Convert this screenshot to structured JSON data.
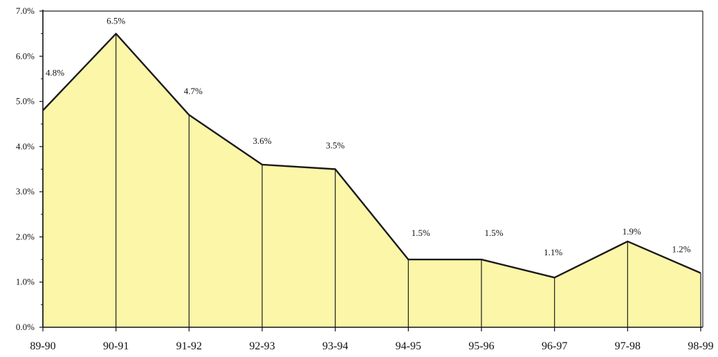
{
  "chart_data": {
    "type": "area",
    "categories": [
      "89-90",
      "90-91",
      "91-92",
      "92-93",
      "93-94",
      "94-95",
      "95-96",
      "96-97",
      "97-98",
      "98-99"
    ],
    "values": [
      4.8,
      6.5,
      4.7,
      3.6,
      3.5,
      1.5,
      1.5,
      1.1,
      1.9,
      1.2
    ],
    "data_labels": [
      "4.8%",
      "6.5%",
      "4.7%",
      "3.6%",
      "3.5%",
      "1.5%",
      "1.5%",
      "1.1%",
      "1.9%",
      "1.2%"
    ],
    "y_ticks": [
      0,
      1,
      2,
      3,
      4,
      5,
      6,
      7
    ],
    "y_tick_labels": [
      "0.0%",
      "1.0%",
      "2.0%",
      "3.0%",
      "4.0%",
      "5.0%",
      "6.0%",
      "7.0%"
    ],
    "ylim": [
      0,
      7
    ],
    "title": "",
    "xlabel": "",
    "ylabel": "",
    "grid": false,
    "legend": "none",
    "fill_color": "#fbf6a8",
    "line_color": "#1a1a1a"
  }
}
